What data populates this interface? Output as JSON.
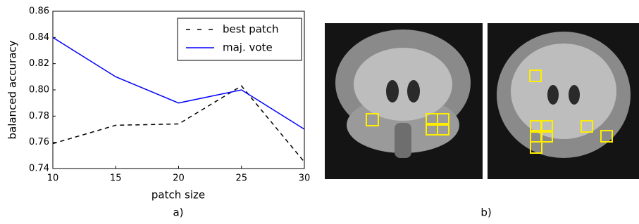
{
  "chart_data": {
    "type": "line",
    "x_label": "patch size",
    "y_label": "balanced accuracy",
    "x": [
      10,
      15,
      20,
      25,
      30
    ],
    "series": [
      {
        "name": "best patch",
        "color": "#000000",
        "linestyle": "dashed",
        "values": [
          0.759,
          0.773,
          0.774,
          0.803,
          0.745
        ]
      },
      {
        "name": "maj. vote",
        "color": "#0000ff",
        "linestyle": "solid",
        "values": [
          0.84,
          0.81,
          0.79,
          0.8,
          0.77
        ]
      }
    ],
    "xlim": [
      10,
      30
    ],
    "xticks": [
      10,
      15,
      20,
      25,
      30
    ],
    "ylim": [
      0.74,
      0.86
    ],
    "yticks": [
      0.74,
      0.76,
      0.78,
      {
        "value": 0.8,
        "label": "0.80"
      },
      0.82,
      0.84,
      0.86
    ],
    "legend": "upper right"
  },
  "panel_labels": [
    "a)",
    "b)"
  ]
}
